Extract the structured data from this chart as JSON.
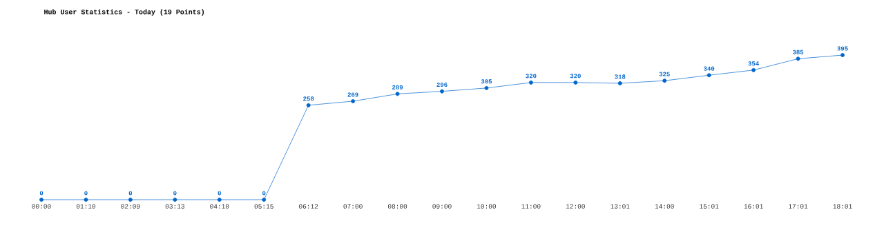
{
  "chart_data": {
    "type": "line",
    "title": "Hub User Statistics - Today (19 Points)",
    "categories": [
      "00:00",
      "01:10",
      "02:09",
      "03:13",
      "04:10",
      "05:15",
      "06:12",
      "07:00",
      "08:00",
      "09:00",
      "10:00",
      "11:00",
      "12:00",
      "13:01",
      "14:00",
      "15:01",
      "16:01",
      "17:01",
      "18:01"
    ],
    "values": [
      0,
      0,
      0,
      0,
      0,
      0,
      258,
      269,
      289,
      296,
      305,
      320,
      320,
      318,
      325,
      340,
      354,
      385,
      395
    ],
    "color": "#0066cc",
    "marker": "circle",
    "line_style": "solid",
    "data_labels": true
  }
}
